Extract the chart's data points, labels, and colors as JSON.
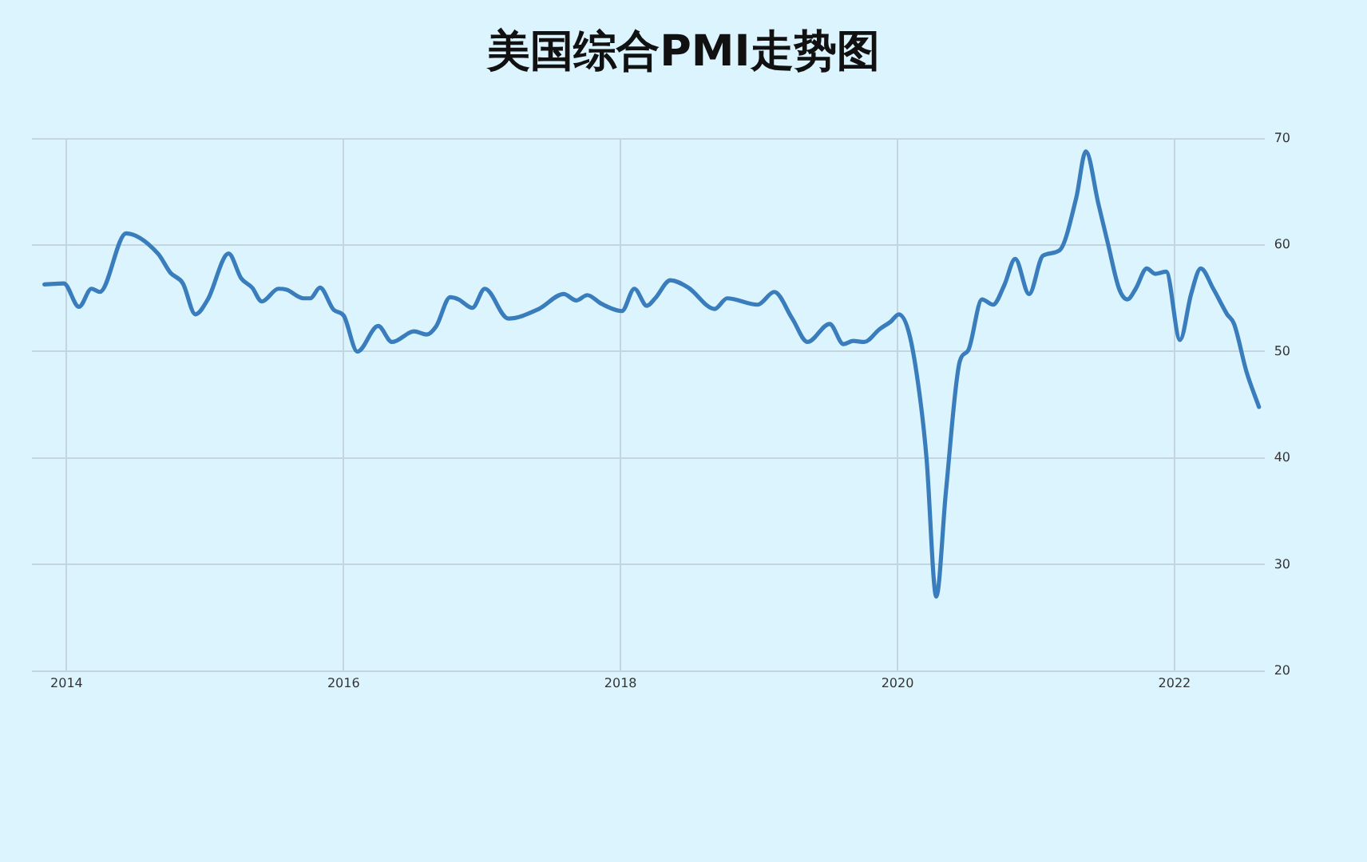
{
  "chart_data": {
    "type": "line",
    "title": "美国综合PMI走势图",
    "x": [
      2013.84,
      2013.98,
      2014.09,
      2014.18,
      2014.24,
      2014.43,
      2014.66,
      2014.75,
      2014.84,
      2014.93,
      2015.02,
      2015.17,
      2015.26,
      2015.34,
      2015.41,
      2015.53,
      2015.59,
      2015.71,
      2015.76,
      2015.83,
      2015.93,
      2016.0,
      2016.1,
      2016.25,
      2016.35,
      2016.51,
      2016.6,
      2016.67,
      2016.77,
      2016.83,
      2016.93,
      2017.02,
      2017.19,
      2017.41,
      2017.59,
      2017.68,
      2017.76,
      2017.86,
      2018.01,
      2018.1,
      2018.19,
      2018.25,
      2018.36,
      2018.49,
      2018.68,
      2018.77,
      2018.99,
      2019.11,
      2019.24,
      2019.35,
      2019.51,
      2019.61,
      2019.68,
      2019.76,
      2019.87,
      2019.95,
      2020.01,
      2020.09,
      2020.17,
      2020.21,
      2020.28,
      2020.35,
      2020.45,
      2020.51,
      2020.61,
      2020.69,
      2020.77,
      2020.85,
      2020.95,
      2021.05,
      2021.17,
      2021.29,
      2021.36,
      2021.45,
      2021.52,
      2021.6,
      2021.66,
      2021.72,
      2021.8,
      2021.86,
      2021.94,
      2022.04,
      2022.12,
      2022.19,
      2022.28,
      2022.38,
      2022.43,
      2022.52,
      2022.61
    ],
    "series": [
      {
        "color": "#3a7dbd",
        "values": [
          56.3,
          56.4,
          54.2,
          55.9,
          55.6,
          61.1,
          59.2,
          57.4,
          56.4,
          53.5,
          54.9,
          59.2,
          56.9,
          56.0,
          54.7,
          55.9,
          55.8,
          55.0,
          55.0,
          56.0,
          53.9,
          53.4,
          50.0,
          52.4,
          50.9,
          51.9,
          51.6,
          52.4,
          55.1,
          54.9,
          54.1,
          55.9,
          53.1,
          54.0,
          55.4,
          54.8,
          55.3,
          54.5,
          53.8,
          55.9,
          54.3,
          55.0,
          56.7,
          56.0,
          54.0,
          55.0,
          54.4,
          55.6,
          53.1,
          50.9,
          52.6,
          50.7,
          51.0,
          50.9,
          52.1,
          52.8,
          53.5,
          51.4,
          44.9,
          39.9,
          27.0,
          36.9,
          49.1,
          50.1,
          54.9,
          54.4,
          56.2,
          58.7,
          55.4,
          59.0,
          59.5,
          64.4,
          68.8,
          63.9,
          60.1,
          55.9,
          54.9,
          55.9,
          57.8,
          57.3,
          57.5,
          51.1,
          55.4,
          57.8,
          55.9,
          53.5,
          52.6,
          48.1,
          44.8
        ]
      }
    ],
    "xlim": [
      2013.75,
      2022.65
    ],
    "xticks": [
      2014,
      2016,
      2018,
      2020,
      2022
    ],
    "ylim": [
      20,
      70
    ],
    "yticks": [
      20,
      30,
      40,
      50,
      60,
      70
    ],
    "grid": true,
    "legend": false,
    "marker": "none",
    "line_style": "solid"
  }
}
